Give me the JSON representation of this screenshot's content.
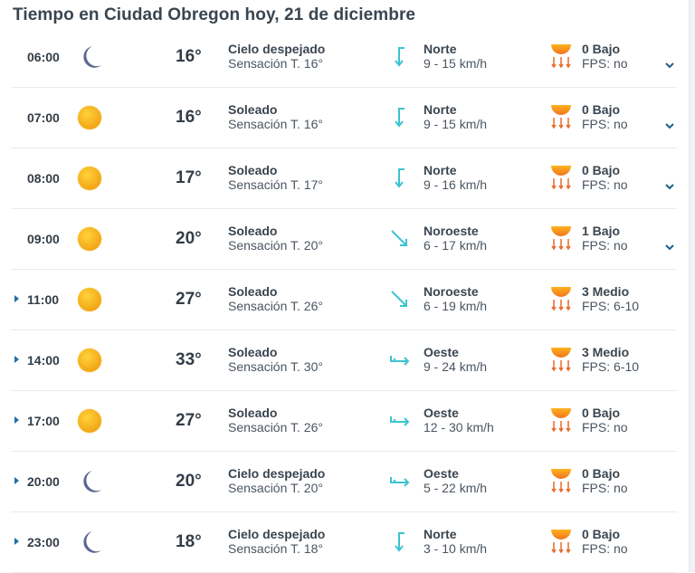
{
  "title": "Tiempo en Ciudad Obregon hoy, 21 de diciembre",
  "colors": {
    "wind_arrow": "#3cc3d0",
    "sun": "#f6b21b",
    "moon": "#5c6690",
    "uv_sun": "#f39a1e",
    "uv_arrows": "#e9692a",
    "expand_triangle": "#1e6fa8",
    "chevron": "#1e5f87"
  },
  "rows": [
    {
      "time": "06:00",
      "icon": "moon-icon",
      "temp": "16°",
      "condition": "Cielo despejado",
      "feels": "Sensación T. 16°",
      "wind_dir": "Norte",
      "wind_icon": "north",
      "wind_speed": "9 - 15 km/h",
      "uv": "0 Bajo",
      "fps": "FPS: no",
      "expander": "chevron"
    },
    {
      "time": "07:00",
      "icon": "sun-icon",
      "temp": "16°",
      "condition": "Soleado",
      "feels": "Sensación T. 16°",
      "wind_dir": "Norte",
      "wind_icon": "north",
      "wind_speed": "9 - 15 km/h",
      "uv": "0 Bajo",
      "fps": "FPS: no",
      "expander": "chevron"
    },
    {
      "time": "08:00",
      "icon": "sun-icon",
      "temp": "17°",
      "condition": "Soleado",
      "feels": "Sensación T. 17°",
      "wind_dir": "Norte",
      "wind_icon": "north",
      "wind_speed": "9 - 16 km/h",
      "uv": "0 Bajo",
      "fps": "FPS: no",
      "expander": "chevron"
    },
    {
      "time": "09:00",
      "icon": "sun-icon",
      "temp": "20°",
      "condition": "Soleado",
      "feels": "Sensación T. 20°",
      "wind_dir": "Noroeste",
      "wind_icon": "northwest",
      "wind_speed": "6 - 17 km/h",
      "uv": "1 Bajo",
      "fps": "FPS: no",
      "expander": "chevron"
    },
    {
      "time": "11:00",
      "icon": "sun-icon",
      "temp": "27°",
      "condition": "Soleado",
      "feels": "Sensación T. 26°",
      "wind_dir": "Noroeste",
      "wind_icon": "northwest",
      "wind_speed": "6 - 19 km/h",
      "uv": "3 Medio",
      "fps": "FPS: 6-10",
      "expander": "triangle"
    },
    {
      "time": "14:00",
      "icon": "sun-icon",
      "temp": "33°",
      "condition": "Soleado",
      "feels": "Sensación T. 30°",
      "wind_dir": "Oeste",
      "wind_icon": "west",
      "wind_speed": "9 - 24 km/h",
      "uv": "3 Medio",
      "fps": "FPS: 6-10",
      "expander": "triangle"
    },
    {
      "time": "17:00",
      "icon": "sun-icon",
      "temp": "27°",
      "condition": "Soleado",
      "feels": "Sensación T. 26°",
      "wind_dir": "Oeste",
      "wind_icon": "west",
      "wind_speed": "12 - 30 km/h",
      "uv": "0 Bajo",
      "fps": "FPS: no",
      "expander": "triangle"
    },
    {
      "time": "20:00",
      "icon": "moon-icon",
      "temp": "20°",
      "condition": "Cielo despejado",
      "feels": "Sensación T. 20°",
      "wind_dir": "Oeste",
      "wind_icon": "west",
      "wind_speed": "5 - 22 km/h",
      "uv": "0 Bajo",
      "fps": "FPS: no",
      "expander": "triangle"
    },
    {
      "time": "23:00",
      "icon": "moon-icon",
      "temp": "18°",
      "condition": "Cielo despejado",
      "feels": "Sensación T. 18°",
      "wind_dir": "Norte",
      "wind_icon": "north",
      "wind_speed": "3 - 10 km/h",
      "uv": "0 Bajo",
      "fps": "FPS: no",
      "expander": "triangle"
    }
  ]
}
